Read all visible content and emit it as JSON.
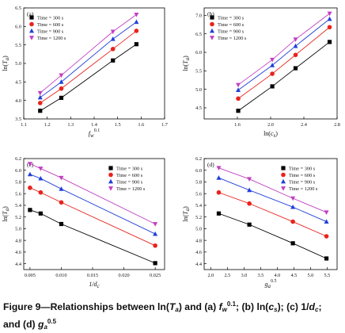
{
  "chart_data": [
    {
      "type": "line",
      "panel_label": "(a)",
      "xlabel": "f_w^0.1",
      "ylabel": "ln(T_a)",
      "xlim": [
        1.1,
        1.7
      ],
      "ylim": [
        3.5,
        6.5
      ],
      "xticks": [
        "1.1",
        "1.2",
        "1.3",
        "1.4",
        "1.5",
        "1.6",
        "1.7"
      ],
      "yticks": [
        "3.5",
        "4.0",
        "4.5",
        "5.0",
        "5.5",
        "6.0",
        "6.5"
      ],
      "legend_position": "top-left",
      "x": [
        1.17,
        1.26,
        1.48,
        1.58
      ],
      "series": [
        {
          "name": "Time = 300 s",
          "marker": "square",
          "color": "#000000",
          "values": [
            3.72,
            4.07,
            5.08,
            5.52
          ]
        },
        {
          "name": "Time = 600 s",
          "marker": "circle",
          "color": "#e8231c",
          "values": [
            3.93,
            4.32,
            5.39,
            5.88
          ]
        },
        {
          "name": "Time = 900 s",
          "marker": "triangle-up",
          "color": "#1f3fd8",
          "values": [
            4.08,
            4.5,
            5.66,
            6.12
          ]
        },
        {
          "name": "Time = 1200 s",
          "marker": "triangle-down",
          "color": "#c23fc2",
          "values": [
            4.2,
            4.68,
            5.86,
            6.32
          ]
        }
      ]
    },
    {
      "type": "line",
      "panel_label": "(b)",
      "xlabel": "ln(c_s)",
      "ylabel": "ln(T_a)",
      "xlim": [
        1.2,
        2.8
      ],
      "ylim": [
        4.2,
        7.2
      ],
      "xticks": [
        "1.6",
        "2.0",
        "2.4",
        "2.8"
      ],
      "yticks": [
        "4.5",
        "5.0",
        "5.5",
        "6.0",
        "6.5",
        "7.0"
      ],
      "legend_position": "top-left",
      "x": [
        1.61,
        2.02,
        2.3,
        2.71
      ],
      "series": [
        {
          "name": "Time = 300 s",
          "marker": "square",
          "color": "#000000",
          "values": [
            4.42,
            5.08,
            5.57,
            6.28
          ]
        },
        {
          "name": "Time = 600 s",
          "marker": "circle",
          "color": "#e8231c",
          "values": [
            4.75,
            5.42,
            5.93,
            6.68
          ]
        },
        {
          "name": "Time = 900 s",
          "marker": "triangle-up",
          "color": "#1f3fd8",
          "values": [
            4.98,
            5.65,
            6.17,
            6.9
          ]
        },
        {
          "name": "Time = 1200 s",
          "marker": "triangle-down",
          "color": "#c23fc2",
          "values": [
            5.12,
            5.8,
            6.35,
            7.05
          ]
        }
      ]
    },
    {
      "type": "line",
      "panel_label": "(c)",
      "xlabel": "1/d_c",
      "ylabel": "ln(T_a)",
      "xlim": [
        0.004,
        0.0265
      ],
      "ylim": [
        4.3,
        6.2
      ],
      "xticks": [
        "0.005",
        "0.010",
        "0.015",
        "0.020",
        "0.025"
      ],
      "yticks": [
        "4.4",
        "4.6",
        "4.8",
        "5.0",
        "5.2",
        "5.4",
        "5.6",
        "5.8",
        "6.0",
        "6.2"
      ],
      "legend_position": "top-right",
      "x": [
        0.005,
        0.0067,
        0.01,
        0.025
      ],
      "series": [
        {
          "name": "Time = 300 s",
          "marker": "square",
          "color": "#000000",
          "values": [
            5.32,
            5.26,
            5.08,
            4.41
          ]
        },
        {
          "name": "Time = 600 s",
          "marker": "circle",
          "color": "#e8231c",
          "values": [
            5.7,
            5.62,
            5.45,
            4.71
          ]
        },
        {
          "name": "Time = 900 s",
          "marker": "triangle-up",
          "color": "#1f3fd8",
          "values": [
            5.93,
            5.86,
            5.68,
            4.91
          ]
        },
        {
          "name": "Time = 1200 s",
          "marker": "triangle-down",
          "color": "#c23fc2",
          "values": [
            6.11,
            6.03,
            5.87,
            5.08
          ]
        }
      ]
    },
    {
      "type": "line",
      "panel_label": "(d)",
      "xlabel": "g_a^0.5",
      "ylabel": "ln(T_a)",
      "xlim": [
        1.8,
        5.8
      ],
      "ylim": [
        4.3,
        6.2
      ],
      "xticks": [
        "2.0",
        "2.5",
        "3.0",
        "3.5",
        "4.0",
        "4.5",
        "5.0",
        "5.5"
      ],
      "yticks": [
        "4.4",
        "4.6",
        "4.8",
        "5.0",
        "5.2",
        "5.4",
        "5.6",
        "5.8",
        "6.0",
        "6.2"
      ],
      "legend_position": "top-right",
      "x": [
        2.24,
        3.16,
        4.47,
        5.48
      ],
      "series": [
        {
          "name": "Time = 300 s",
          "marker": "square",
          "color": "#000000",
          "values": [
            5.26,
            5.07,
            4.75,
            4.49
          ]
        },
        {
          "name": "Time = 600 s",
          "marker": "circle",
          "color": "#e8231c",
          "values": [
            5.62,
            5.43,
            5.12,
            4.87
          ]
        },
        {
          "name": "Time = 900 s",
          "marker": "triangle-up",
          "color": "#1f3fd8",
          "values": [
            5.87,
            5.66,
            5.37,
            5.12
          ]
        },
        {
          "name": "Time = 1200 s",
          "marker": "triangle-down",
          "color": "#c23fc2",
          "values": [
            6.04,
            5.85,
            5.52,
            5.28
          ]
        }
      ]
    }
  ],
  "caption": {
    "prefix": "Figure 9—Relationships between ln(",
    "t_var": "T",
    "t_sub": "a",
    "part_a": ") and (a) ",
    "fw_var": "f",
    "fw_sub": "w",
    "fw_exp": "0.1",
    "part_b": "; (b) ln(",
    "cs_var": "c",
    "cs_sub": "s",
    "part_c": "); (c) 1/",
    "dc_var": "d",
    "dc_sub": "c",
    "part_d": ";",
    "part_e": "and (d) ",
    "ga_var": "g",
    "ga_sub": "a",
    "ga_exp": "0.5"
  }
}
